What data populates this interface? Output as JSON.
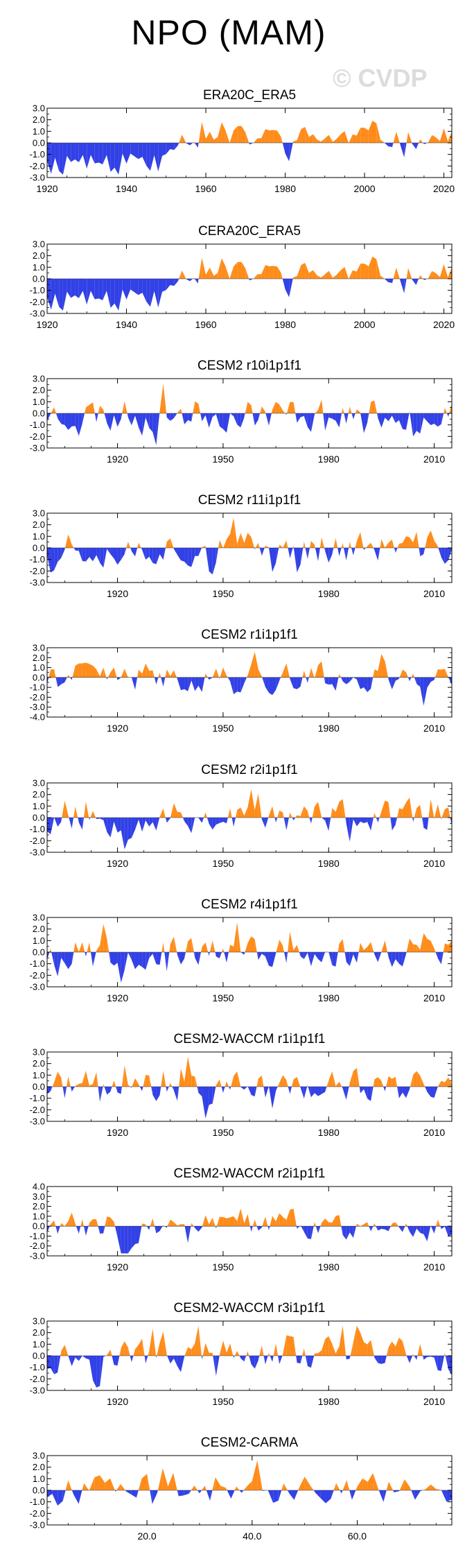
{
  "page": {
    "title": "NPO (MAM)",
    "watermark": "© CVDP"
  },
  "colors": {
    "positive": "#ff8c1a",
    "negative": "#3241e6",
    "axis": "#000000"
  },
  "chart_data": [
    {
      "type": "area",
      "title": "ERA20C_ERA5",
      "seed": 11,
      "trend": "early-negative",
      "x_range": [
        1920,
        2022
      ],
      "ylim": [
        -3.0,
        3.0
      ],
      "yticks": [
        "3.0",
        "2.0",
        "1.0",
        "0.0",
        "-1.0",
        "-2.0",
        "-3.0"
      ],
      "xticks": [
        "1920",
        "1940",
        "1960",
        "1980",
        "2000",
        "2020"
      ],
      "xtick_values": [
        1920,
        1940,
        1960,
        1980,
        2000,
        2020
      ]
    },
    {
      "type": "area",
      "title": "CERA20C_ERA5",
      "seed": 11,
      "trend": "early-negative",
      "x_range": [
        1920,
        2022
      ],
      "ylim": [
        -3.0,
        3.0
      ],
      "yticks": [
        "3.0",
        "2.0",
        "1.0",
        "0.0",
        "-1.0",
        "-2.0",
        "-3.0"
      ],
      "xticks": [
        "1920",
        "1940",
        "1960",
        "1980",
        "2000",
        "2020"
      ],
      "xtick_values": [
        1920,
        1940,
        1960,
        1980,
        2000,
        2020
      ]
    },
    {
      "type": "area",
      "title": "CESM2 r10i1p1f1",
      "seed": 23,
      "trend": "none",
      "x_range": [
        1900,
        2015
      ],
      "ylim": [
        -3.0,
        3.0
      ],
      "yticks": [
        "3.0",
        "2.0",
        "1.0",
        "0.0",
        "-1.0",
        "-2.0",
        "-3.0"
      ],
      "xticks": [
        "1920",
        "1950",
        "1980",
        "2010"
      ],
      "xtick_values": [
        1920,
        1950,
        1980,
        2010
      ]
    },
    {
      "type": "area",
      "title": "CESM2 r11i1p1f1",
      "seed": 37,
      "trend": "none",
      "x_range": [
        1900,
        2015
      ],
      "ylim": [
        -3.0,
        3.0
      ],
      "yticks": [
        "3.0",
        "2.0",
        "1.0",
        "0.0",
        "-1.0",
        "-2.0",
        "-3.0"
      ],
      "xticks": [
        "1920",
        "1950",
        "1980",
        "2010"
      ],
      "xtick_values": [
        1920,
        1950,
        1980,
        2010
      ]
    },
    {
      "type": "area",
      "title": "CESM2 r1i1p1f1",
      "seed": 41,
      "trend": "none",
      "x_range": [
        1900,
        2015
      ],
      "ylim": [
        -4.0,
        3.0
      ],
      "yticks": [
        "3.0",
        "2.0",
        "1.0",
        "0.0",
        "-1.0",
        "-2.0",
        "-3.0",
        "-4.0"
      ],
      "xticks": [
        "1920",
        "1950",
        "1980",
        "2010"
      ],
      "xtick_values": [
        1920,
        1950,
        1980,
        2010
      ]
    },
    {
      "type": "area",
      "title": "CESM2 r2i1p1f1",
      "seed": 53,
      "trend": "none",
      "x_range": [
        1900,
        2015
      ],
      "ylim": [
        -3.0,
        3.0
      ],
      "yticks": [
        "3.0",
        "2.0",
        "1.0",
        "0.0",
        "-1.0",
        "-2.0",
        "-3.0"
      ],
      "xticks": [
        "1920",
        "1950",
        "1980",
        "2010"
      ],
      "xtick_values": [
        1920,
        1950,
        1980,
        2010
      ]
    },
    {
      "type": "area",
      "title": "CESM2 r4i1p1f1",
      "seed": 67,
      "trend": "none",
      "x_range": [
        1900,
        2015
      ],
      "ylim": [
        -3.0,
        3.0
      ],
      "yticks": [
        "3.0",
        "2.0",
        "1.0",
        "0.0",
        "-1.0",
        "-2.0",
        "-3.0"
      ],
      "xticks": [
        "1920",
        "1950",
        "1980",
        "2010"
      ],
      "xtick_values": [
        1920,
        1950,
        1980,
        2010
      ]
    },
    {
      "type": "area",
      "title": "CESM2-WACCM r1i1p1f1",
      "seed": 71,
      "trend": "none",
      "x_range": [
        1900,
        2015
      ],
      "ylim": [
        -3.0,
        3.0
      ],
      "yticks": [
        "3.0",
        "2.0",
        "1.0",
        "0.0",
        "-1.0",
        "-2.0",
        "-3.0"
      ],
      "xticks": [
        "1920",
        "1950",
        "1980",
        "2010"
      ],
      "xtick_values": [
        1920,
        1950,
        1980,
        2010
      ]
    },
    {
      "type": "area",
      "title": "CESM2-WACCM r2i1p1f1",
      "seed": 83,
      "trend": "none",
      "x_range": [
        1900,
        2015
      ],
      "ylim": [
        -3.0,
        4.0
      ],
      "yticks": [
        "4.0",
        "3.0",
        "2.0",
        "1.0",
        "0.0",
        "-1.0",
        "-2.0",
        "-3.0"
      ],
      "xticks": [
        "1920",
        "1950",
        "1980",
        "2010"
      ],
      "xtick_values": [
        1920,
        1950,
        1980,
        2010
      ]
    },
    {
      "type": "area",
      "title": "CESM2-WACCM r3i1p1f1",
      "seed": 97,
      "trend": "none",
      "x_range": [
        1900,
        2015
      ],
      "ylim": [
        -3.0,
        3.0
      ],
      "yticks": [
        "3.0",
        "2.0",
        "1.0",
        "0.0",
        "-1.0",
        "-2.0",
        "-3.0"
      ],
      "xticks": [
        "1920",
        "1950",
        "1980",
        "2010"
      ],
      "xtick_values": [
        1920,
        1950,
        1980,
        2010
      ]
    },
    {
      "type": "area",
      "title": "CESM2-CARMA",
      "seed": 109,
      "trend": "none",
      "x_range": [
        1,
        78
      ],
      "ylim": [
        -3.0,
        3.0
      ],
      "yticks": [
        "3.0",
        "2.0",
        "1.0",
        "0.0",
        "-1.0",
        "-2.0",
        "-3.0"
      ],
      "xticks": [
        "20.0",
        "40.0",
        "60.0"
      ],
      "xtick_values": [
        20,
        40,
        60
      ]
    }
  ]
}
